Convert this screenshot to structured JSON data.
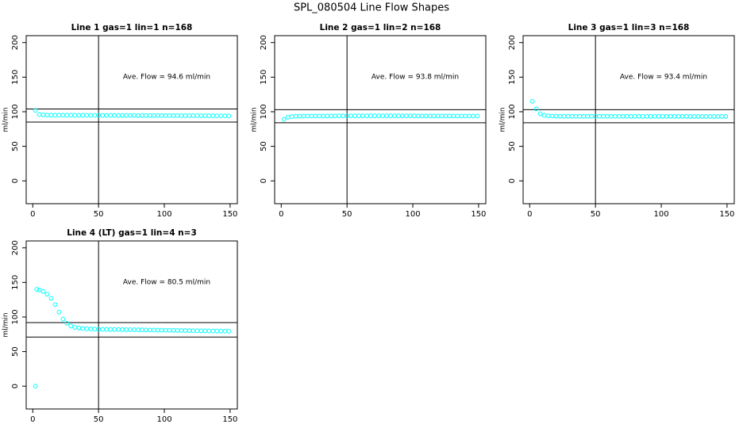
{
  "title": "SPL_080504  Line Flow Shapes",
  "chart_data": [
    {
      "type": "scatter",
      "title": "Line 1 gas=1 lin=1 n=168",
      "y_label": "ml/min",
      "annotation": "Ave. Flow = 94.6 ml/min",
      "xlim": [
        -5,
        155.5
      ],
      "ylim": [
        -33,
        210
      ],
      "xticks": [
        0,
        50,
        100,
        150
      ],
      "yticks": [
        0,
        50,
        100,
        150,
        200
      ],
      "hlines": [
        104,
        85
      ],
      "vlines": [
        50
      ],
      "series": [
        {
          "color": "#00ffff",
          "x": [
            2,
            5,
            8,
            11,
            14,
            17,
            20,
            23,
            26,
            29,
            32,
            35,
            38,
            41,
            44,
            47,
            50,
            53,
            56,
            59,
            62,
            65,
            68,
            71,
            74,
            77,
            80,
            83,
            86,
            89,
            92,
            95,
            98,
            101,
            104,
            107,
            110,
            113,
            116,
            119,
            122,
            125,
            128,
            131,
            134,
            137,
            140,
            143,
            146,
            149
          ],
          "values": [
            102,
            96,
            95.5,
            95.2,
            95,
            95,
            95,
            95,
            95,
            95,
            94.9,
            94.9,
            94.9,
            94.8,
            94.8,
            94.8,
            94.8,
            94.7,
            94.7,
            94.7,
            94.7,
            94.6,
            94.6,
            94.6,
            94.6,
            94.6,
            94.5,
            94.5,
            94.5,
            94.5,
            94.5,
            94.5,
            94.4,
            94.4,
            94.4,
            94.4,
            94.4,
            94.3,
            94.3,
            94.3,
            94.3,
            94.3,
            94.2,
            94.2,
            94.2,
            94.2,
            94.1,
            94.1,
            94.1,
            94
          ]
        }
      ]
    },
    {
      "type": "scatter",
      "title": "Line 2 gas=1 lin=2 n=168",
      "y_label": "ml/min",
      "annotation": "Ave. Flow = 93.8 ml/min",
      "xlim": [
        -5,
        155.5
      ],
      "ylim": [
        -33,
        210
      ],
      "xticks": [
        0,
        50,
        100,
        150
      ],
      "yticks": [
        0,
        50,
        100,
        150,
        200
      ],
      "hlines": [
        103,
        84
      ],
      "vlines": [
        50
      ],
      "series": [
        {
          "color": "#00ffff",
          "x": [
            2,
            5,
            8,
            11,
            14,
            17,
            20,
            23,
            26,
            29,
            32,
            35,
            38,
            41,
            44,
            47,
            50,
            53,
            56,
            59,
            62,
            65,
            68,
            71,
            74,
            77,
            80,
            83,
            86,
            89,
            92,
            95,
            98,
            101,
            104,
            107,
            110,
            113,
            116,
            119,
            122,
            125,
            128,
            131,
            134,
            137,
            140,
            143,
            146,
            149
          ],
          "values": [
            89,
            92,
            93,
            93.5,
            93.6,
            93.7,
            93.7,
            93.8,
            93.8,
            93.8,
            93.8,
            93.9,
            93.9,
            93.9,
            94,
            94,
            94,
            94,
            94,
            94,
            94,
            94,
            94,
            94,
            94,
            94,
            94,
            94,
            94,
            94,
            94,
            94,
            94,
            94,
            93.9,
            93.9,
            93.9,
            93.9,
            93.9,
            93.9,
            93.9,
            93.9,
            93.9,
            93.9,
            93.8,
            93.8,
            93.8,
            93.8,
            93.8,
            93.8
          ]
        }
      ]
    },
    {
      "type": "scatter",
      "title": "Line 3 gas=1 lin=3 n=168",
      "y_label": "ml/min",
      "annotation": "Ave. Flow = 93.4 ml/min",
      "xlim": [
        -5,
        155.5
      ],
      "ylim": [
        -33,
        210
      ],
      "xticks": [
        0,
        50,
        100,
        150
      ],
      "yticks": [
        0,
        50,
        100,
        150,
        200
      ],
      "hlines": [
        103,
        84
      ],
      "vlines": [
        50
      ],
      "series": [
        {
          "color": "#00ffff",
          "x": [
            2,
            5,
            8,
            11,
            14,
            17,
            20,
            23,
            26,
            29,
            32,
            35,
            38,
            41,
            44,
            47,
            50,
            53,
            56,
            59,
            62,
            65,
            68,
            71,
            74,
            77,
            80,
            83,
            86,
            89,
            92,
            95,
            98,
            101,
            104,
            107,
            110,
            113,
            116,
            119,
            122,
            125,
            128,
            131,
            134,
            137,
            140,
            143,
            146,
            149
          ],
          "values": [
            115,
            104,
            97,
            95,
            94,
            93.8,
            93.6,
            93.5,
            93.5,
            93.5,
            93.4,
            93.4,
            93.4,
            93.4,
            93.4,
            93.4,
            93.4,
            93.4,
            93.4,
            93.4,
            93.4,
            93.4,
            93.4,
            93.4,
            93.4,
            93.3,
            93.3,
            93.3,
            93.3,
            93.3,
            93.3,
            93.3,
            93.3,
            93.3,
            93.3,
            93.3,
            93.3,
            93.3,
            93.3,
            93.3,
            93.2,
            93.2,
            93.2,
            93.2,
            93.2,
            93.2,
            93.2,
            93.2,
            93.2,
            93.2
          ]
        }
      ]
    },
    {
      "type": "scatter",
      "title": "Line 4 (LT) gas=1 lin=4 n=3",
      "y_label": "ml/min",
      "annotation": "Ave. Flow = 80.5 ml/min",
      "xlim": [
        -5,
        155.5
      ],
      "ylim": [
        -33,
        210
      ],
      "xticks": [
        0,
        50,
        100,
        150
      ],
      "yticks": [
        0,
        50,
        100,
        150,
        200
      ],
      "hlines": [
        92,
        71
      ],
      "vlines": [
        50
      ],
      "series": [
        {
          "color": "#00ffff",
          "x": [
            2,
            3,
            5,
            8,
            11,
            14,
            17,
            20,
            23,
            26,
            29,
            32,
            35,
            38,
            41,
            44,
            47,
            50,
            53,
            56,
            59,
            62,
            65,
            68,
            71,
            74,
            77,
            80,
            83,
            86,
            89,
            92,
            95,
            98,
            101,
            104,
            107,
            110,
            113,
            116,
            119,
            122,
            125,
            128,
            131,
            134,
            137,
            140,
            143,
            146,
            149
          ],
          "values": [
            0,
            140,
            139,
            137,
            133,
            127,
            118,
            107,
            97,
            91,
            87,
            85,
            84,
            83.5,
            83,
            82.8,
            82.5,
            82.3,
            82.2,
            82.1,
            82,
            82,
            81.9,
            81.8,
            81.7,
            81.7,
            81.6,
            81.5,
            81.4,
            81.3,
            81.2,
            81.1,
            81,
            81,
            80.9,
            80.8,
            80.7,
            80.6,
            80.5,
            80.4,
            80.3,
            80.2,
            80.1,
            80,
            80,
            79.9,
            79.8,
            79.7,
            79.6,
            79.5,
            79.4
          ]
        }
      ]
    }
  ]
}
